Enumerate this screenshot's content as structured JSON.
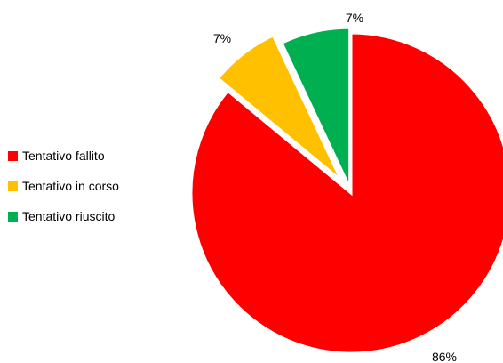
{
  "chart_data": {
    "type": "pie",
    "title": "",
    "categories": [
      "Tentativo fallito",
      "Tentativo in corso",
      "Tentativo riuscito"
    ],
    "values": [
      86,
      7,
      7
    ],
    "value_labels": [
      "86%",
      "7%",
      "7%"
    ],
    "colors": [
      "#ff0000",
      "#ffc000",
      "#00b050"
    ],
    "legend_position": "left"
  }
}
